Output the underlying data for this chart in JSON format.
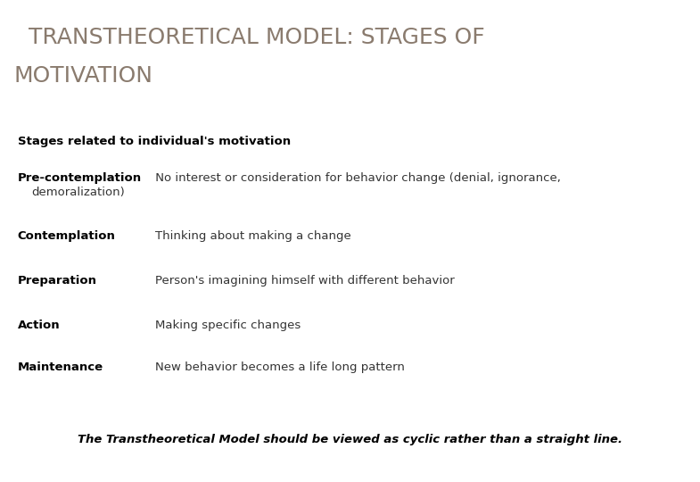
{
  "title_line1": "  TRANSTHEORETICAL MODEL: STAGES OF",
  "title_line2": "MOTIVATION",
  "title_color": "#8a7b6e",
  "title_fontsize": 18,
  "subtitle": "Stages related to individual's motivation",
  "subtitle_fontsize": 9.5,
  "stages": [
    {
      "term": "Pre-contemplation",
      "desc_inline": " No interest or consideration for behavior change (denial, ignorance,",
      "desc_line2": "    demoralization)",
      "has_line2": true
    },
    {
      "term": "Contemplation",
      "desc_inline": "    Thinking about making a change",
      "desc_line2": "",
      "has_line2": false
    },
    {
      "term": "Preparation",
      "desc_inline": "    Person's imagining himself with different behavior",
      "desc_line2": "",
      "has_line2": false
    },
    {
      "term": "Action",
      "desc_inline": "    Making specific changes",
      "desc_line2": "",
      "has_line2": false
    },
    {
      "term": "Maintenance",
      "desc_inline": "    New behavior becomes a life long pattern",
      "desc_line2": "",
      "has_line2": false
    }
  ],
  "term_fontsize": 9.5,
  "desc_fontsize": 9.5,
  "footer": "The Transtheoretical Model should be viewed as cyclic rather than a straight line.",
  "footer_fontsize": 9.5,
  "bg_color": "#ffffff",
  "text_color": "#000000",
  "term_color": "#000000",
  "desc_color": "#333333",
  "title_weight": "normal"
}
